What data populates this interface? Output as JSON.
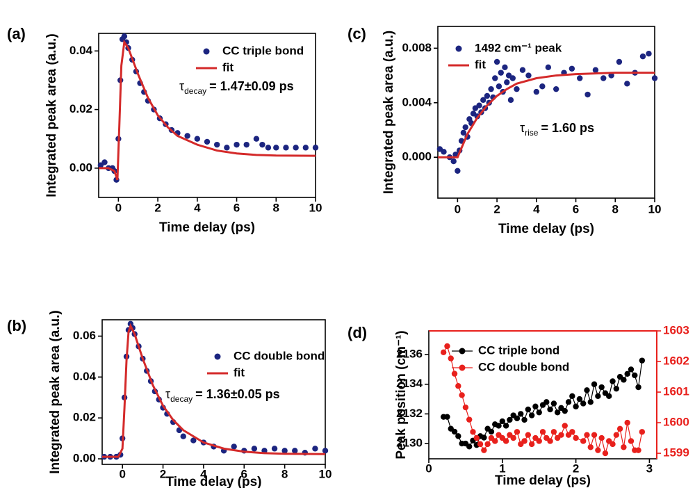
{
  "chart_data": [
    {
      "type": "scatter",
      "panel_label": "(a)",
      "xlabel": "Time delay (ps)",
      "ylabel": "Integrated peak area (a.u.)",
      "xlim": [
        -1,
        10
      ],
      "xticks": [
        0,
        2,
        4,
        6,
        8,
        10
      ],
      "ylim": [
        -0.01,
        0.046
      ],
      "yticks": [
        {
          "value": 0,
          "label": "0.00"
        },
        {
          "value": 0.02,
          "label": "0.02"
        },
        {
          "value": 0.04,
          "label": "0.04"
        }
      ],
      "legend": "upper right",
      "annotation": {
        "symbol": "τ",
        "subscript": "decay",
        "text": "= 1.47±0.09 ps"
      },
      "series": [
        {
          "name": "CC triple bond",
          "style": "markers",
          "color": "#1c2580",
          "x": [
            -0.9,
            -0.7,
            -0.5,
            -0.3,
            -0.2,
            -0.1,
            0,
            0.1,
            0.2,
            0.3,
            0.4,
            0.5,
            0.7,
            0.9,
            1.1,
            1.3,
            1.5,
            1.8,
            2.1,
            2.4,
            2.7,
            3.0,
            3.5,
            4.0,
            4.5,
            5.0,
            5.5,
            6.0,
            6.5,
            7.0,
            7.3,
            7.6,
            8.0,
            8.5,
            9.0,
            9.5,
            10
          ],
          "values": [
            0.001,
            0.002,
            0.0,
            0.0,
            -0.001,
            -0.004,
            0.01,
            0.03,
            0.044,
            0.045,
            0.043,
            0.041,
            0.037,
            0.033,
            0.029,
            0.026,
            0.023,
            0.02,
            0.017,
            0.015,
            0.013,
            0.012,
            0.011,
            0.01,
            0.009,
            0.008,
            0.007,
            0.008,
            0.008,
            0.01,
            0.008,
            0.007,
            0.007,
            0.007,
            0.007,
            0.007,
            0.007
          ]
        },
        {
          "name": "fit",
          "style": "line",
          "color": "#d42a2a",
          "x": [
            -1,
            -0.5,
            -0.2,
            -0.05,
            0.05,
            0.15,
            0.3,
            0.5,
            1,
            1.5,
            2,
            2.5,
            3,
            4,
            5,
            6,
            7,
            8,
            10
          ],
          "values": [
            0,
            0,
            -0.001,
            -0.004,
            0.015,
            0.035,
            0.043,
            0.041,
            0.032,
            0.024,
            0.018,
            0.014,
            0.011,
            0.008,
            0.006,
            0.005,
            0.0045,
            0.0043,
            0.0042
          ]
        }
      ]
    },
    {
      "type": "scatter",
      "panel_label": "(c)",
      "xlabel": "Time delay (ps)",
      "ylabel": "Integrated peak area (a.u.)",
      "xlim": [
        -1,
        10
      ],
      "xticks": [
        0,
        2,
        4,
        6,
        8,
        10
      ],
      "ylim": [
        -0.003,
        0.0096
      ],
      "yticks": [
        {
          "value": 0,
          "label": "0.000"
        },
        {
          "value": 0.004,
          "label": "0.004"
        },
        {
          "value": 0.008,
          "label": "0.008"
        }
      ],
      "legend": "upper left",
      "annotation": {
        "symbol": "τ",
        "subscript": "rise",
        "text": "= 1.60 ps"
      },
      "series": [
        {
          "name": "1492 cm⁻¹ peak",
          "style": "markers",
          "color": "#1c2580",
          "x": [
            -0.9,
            -0.7,
            -0.4,
            -0.2,
            -0.1,
            0,
            0.1,
            0.2,
            0.3,
            0.4,
            0.5,
            0.6,
            0.7,
            0.8,
            0.9,
            1.0,
            1.1,
            1.2,
            1.3,
            1.4,
            1.5,
            1.6,
            1.7,
            1.8,
            1.9,
            2.0,
            2.1,
            2.2,
            2.3,
            2.4,
            2.5,
            2.6,
            2.7,
            2.8,
            3.0,
            3.3,
            3.6,
            4.0,
            4.3,
            4.6,
            5.0,
            5.4,
            5.8,
            6.2,
            6.6,
            7.0,
            7.4,
            7.8,
            8.2,
            8.6,
            9.0,
            9.4,
            9.7,
            10
          ],
          "values": [
            0.0006,
            0.0004,
            0.0,
            -0.0003,
            0.0002,
            -0.001,
            0.0005,
            0.0012,
            0.0018,
            0.0022,
            0.0015,
            0.0028,
            0.0025,
            0.0032,
            0.0036,
            0.003,
            0.0038,
            0.0033,
            0.0042,
            0.0036,
            0.0045,
            0.004,
            0.005,
            0.0044,
            0.0058,
            0.007,
            0.0052,
            0.0062,
            0.0048,
            0.0066,
            0.0055,
            0.006,
            0.0042,
            0.0058,
            0.005,
            0.0064,
            0.006,
            0.0048,
            0.0052,
            0.0066,
            0.005,
            0.0062,
            0.0065,
            0.0058,
            0.0046,
            0.0064,
            0.0058,
            0.006,
            0.007,
            0.0054,
            0.0062,
            0.0074,
            0.0076,
            0.0058
          ]
        },
        {
          "name": "fit",
          "style": "line",
          "color": "#d42a2a",
          "x": [
            -1,
            0,
            0.5,
            1,
            1.5,
            2,
            2.5,
            3,
            4,
            5,
            6,
            8,
            10
          ],
          "values": [
            0,
            0,
            0.0017,
            0.0029,
            0.0038,
            0.0045,
            0.005,
            0.0054,
            0.0058,
            0.006,
            0.0061,
            0.0062,
            0.0062
          ]
        }
      ]
    },
    {
      "type": "scatter",
      "panel_label": "(b)",
      "xlabel": "Time delay (ps)",
      "ylabel": "Integrated peak area (a.u.)",
      "xlim": [
        -1,
        10
      ],
      "xticks": [
        0,
        2,
        4,
        6,
        8,
        10
      ],
      "ylim": [
        -0.0027,
        0.068
      ],
      "yticks": [
        {
          "value": 0,
          "label": "0.00"
        },
        {
          "value": 0.02,
          "label": "0.02"
        },
        {
          "value": 0.04,
          "label": "0.04"
        },
        {
          "value": 0.06,
          "label": "0.06"
        }
      ],
      "legend": "upper right",
      "annotation": {
        "symbol": "τ",
        "subscript": "decay",
        "text": "= 1.36±0.05 ps"
      },
      "series": [
        {
          "name": "CC double bond",
          "style": "markers",
          "color": "#1c2580",
          "x": [
            -0.9,
            -0.6,
            -0.3,
            -0.1,
            0,
            0.1,
            0.2,
            0.3,
            0.4,
            0.5,
            0.6,
            0.8,
            1.0,
            1.2,
            1.4,
            1.6,
            1.8,
            2.0,
            2.2,
            2.5,
            2.8,
            3.0,
            3.5,
            4.0,
            4.5,
            5.0,
            5.5,
            6.0,
            6.5,
            7.0,
            7.5,
            8.0,
            8.5,
            9.0,
            9.5,
            10
          ],
          "values": [
            0.001,
            0.001,
            0.001,
            0.002,
            0.01,
            0.03,
            0.05,
            0.063,
            0.066,
            0.064,
            0.061,
            0.055,
            0.049,
            0.043,
            0.038,
            0.033,
            0.029,
            0.025,
            0.022,
            0.018,
            0.014,
            0.011,
            0.009,
            0.008,
            0.006,
            0.004,
            0.006,
            0.004,
            0.005,
            0.004,
            0.005,
            0.004,
            0.004,
            0.003,
            0.005,
            0.004
          ]
        },
        {
          "name": "fit",
          "style": "line",
          "color": "#d42a2a",
          "x": [
            -1,
            -0.2,
            0,
            0.1,
            0.2,
            0.3,
            0.4,
            0.6,
            1,
            1.5,
            2,
            2.5,
            3,
            4,
            5,
            6,
            7,
            8,
            10
          ],
          "values": [
            0.001,
            0.001,
            0.005,
            0.025,
            0.048,
            0.062,
            0.065,
            0.061,
            0.049,
            0.036,
            0.026,
            0.019,
            0.014,
            0.008,
            0.005,
            0.0035,
            0.0028,
            0.0025,
            0.0023
          ]
        }
      ]
    },
    {
      "type": "line",
      "panel_label": "(d)",
      "xlabel": "Time delay (ps)",
      "ylabel": "Peak position (cm⁻¹)",
      "xlim": [
        0,
        3.1
      ],
      "xticks": [
        0,
        1,
        2,
        3
      ],
      "ylim": [
        2128.97,
        2137.6
      ],
      "yticks": [
        2130,
        2132,
        2134,
        2136
      ],
      "y2lim": [
        1598.82,
        1603
      ],
      "y2ticks": [
        1599,
        1600,
        1601,
        1602,
        1603
      ],
      "y2color": "#e8201c",
      "legend": "upper left",
      "series": [
        {
          "name": "CC triple bond",
          "style": "markers+line",
          "color": "#000000",
          "x": [
            0.2,
            0.25,
            0.3,
            0.35,
            0.4,
            0.45,
            0.5,
            0.55,
            0.6,
            0.65,
            0.7,
            0.75,
            0.8,
            0.85,
            0.9,
            0.95,
            1.0,
            1.05,
            1.1,
            1.15,
            1.2,
            1.25,
            1.3,
            1.35,
            1.4,
            1.45,
            1.5,
            1.55,
            1.6,
            1.65,
            1.7,
            1.75,
            1.8,
            1.85,
            1.9,
            1.95,
            2.0,
            2.05,
            2.1,
            2.15,
            2.2,
            2.25,
            2.3,
            2.35,
            2.4,
            2.45,
            2.5,
            2.55,
            2.6,
            2.65,
            2.7,
            2.75,
            2.8,
            2.85,
            2.9
          ],
          "values": [
            2131.8,
            2131.8,
            2131.0,
            2130.8,
            2130.5,
            2130.0,
            2130.0,
            2129.8,
            2130.2,
            2129.9,
            2130.5,
            2130.4,
            2131.0,
            2130.8,
            2131.3,
            2131.2,
            2131.5,
            2131.2,
            2131.6,
            2131.9,
            2131.7,
            2132.0,
            2131.6,
            2132.3,
            2131.9,
            2132.5,
            2132.1,
            2132.6,
            2132.8,
            2132.3,
            2132.7,
            2132.1,
            2132.4,
            2132.2,
            2132.8,
            2133.2,
            2132.5,
            2133.0,
            2132.7,
            2133.6,
            2132.8,
            2134.0,
            2133.2,
            2133.8,
            2133.4,
            2133.2,
            2134.2,
            2133.7,
            2134.5,
            2134.3,
            2134.7,
            2135.0,
            2134.6,
            2133.8,
            2135.6
          ]
        },
        {
          "name": "CC double bond",
          "style": "markers+line",
          "color": "#e8201c",
          "axis": "y2",
          "x": [
            0.2,
            0.25,
            0.3,
            0.35,
            0.4,
            0.45,
            0.5,
            0.55,
            0.6,
            0.65,
            0.7,
            0.75,
            0.8,
            0.85,
            0.9,
            0.95,
            1.0,
            1.05,
            1.1,
            1.15,
            1.2,
            1.25,
            1.3,
            1.35,
            1.4,
            1.45,
            1.5,
            1.55,
            1.6,
            1.65,
            1.7,
            1.75,
            1.8,
            1.85,
            1.9,
            1.95,
            2.0,
            2.1,
            2.15,
            2.2,
            2.25,
            2.3,
            2.35,
            2.4,
            2.45,
            2.5,
            2.55,
            2.6,
            2.65,
            2.7,
            2.75,
            2.8,
            2.85,
            2.9
          ],
          "values": [
            1602.3,
            1602.5,
            1602.1,
            1601.6,
            1601.2,
            1600.9,
            1600.5,
            1600.1,
            1599.7,
            1599.5,
            1599.3,
            1599.1,
            1599.3,
            1599.5,
            1599.4,
            1599.6,
            1599.5,
            1599.4,
            1599.6,
            1599.5,
            1599.7,
            1599.3,
            1599.4,
            1599.6,
            1599.3,
            1599.5,
            1599.4,
            1599.7,
            1599.5,
            1599.4,
            1599.7,
            1599.5,
            1599.6,
            1599.9,
            1599.6,
            1599.7,
            1599.5,
            1599.4,
            1599.6,
            1599.2,
            1599.6,
            1599.1,
            1599.5,
            1599.0,
            1599.4,
            1599.3,
            1599.6,
            1599.8,
            1599.2,
            1600.0,
            1599.4,
            1599.1,
            1599.1,
            1599.7
          ]
        }
      ]
    }
  ]
}
